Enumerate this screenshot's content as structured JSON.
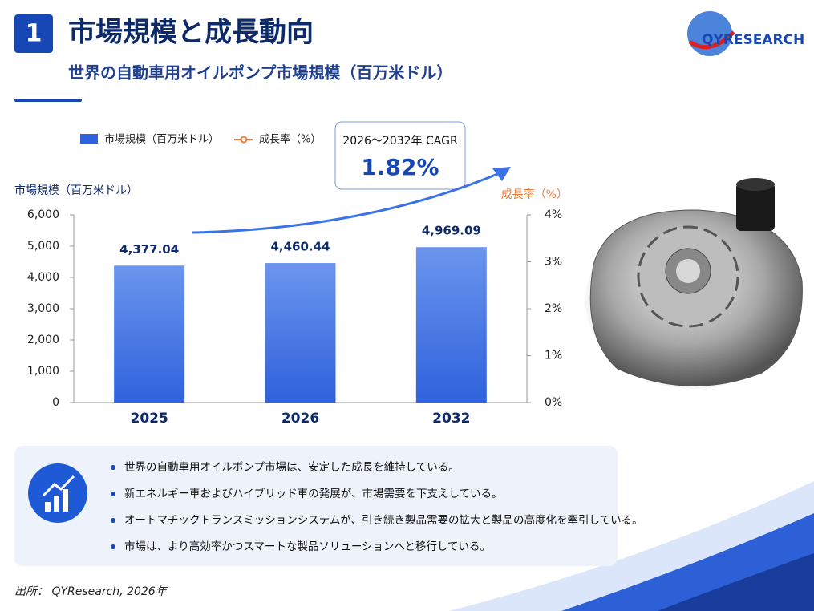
{
  "header": {
    "number": "1",
    "title": "市場規模と成長動向",
    "subtitle": "世界の自動車用オイルポンプ市場規模（百万米ドル）",
    "logo": "QYRESEARCH"
  },
  "chart_data": {
    "type": "bar",
    "categories": [
      "2025",
      "2026",
      "2032"
    ],
    "series": [
      {
        "name": "市場規模（百万米ドル）",
        "color": "#2f62dc",
        "values": [
          4377.04,
          4460.44,
          4969.09
        ],
        "value_labels": [
          "4,377.04",
          "4,460.44",
          "4,969.09"
        ]
      },
      {
        "name": "成長率（%）",
        "color": "#f07a3a",
        "axis": "y2",
        "values": [
          null,
          null,
          null
        ]
      }
    ],
    "y_label": "市場規模（百万米ドル）",
    "y2_label": "成長率（%）",
    "ylim": [
      0,
      6000
    ],
    "yticks": [
      0,
      {
        "value": 1000,
        "label": "1,000"
      },
      {
        "value": 2000,
        "label": "2,000"
      },
      {
        "value": 3000,
        "label": "3,000"
      },
      {
        "value": 4000,
        "label": "4,000"
      },
      {
        "value": 5000,
        "label": "5,000"
      },
      {
        "value": 6000,
        "label": "6,000"
      }
    ],
    "y2lim": [
      0,
      4
    ],
    "y2ticks": [
      {
        "value": 0,
        "label": "0%"
      },
      {
        "value": 1,
        "label": "1%"
      },
      {
        "value": 2,
        "label": "2%"
      },
      {
        "value": 3,
        "label": "3%"
      },
      {
        "value": 4,
        "label": "4%"
      }
    ],
    "annotation": {
      "label": "2026～2032年 CAGR",
      "value": "1.82%"
    }
  },
  "bullets": [
    "世界の自動車用オイルポンプ市場は、安定した成長を維持している。",
    "新エネルギー車およびハイブリッド車の発展が、市場需要を下支えしている。",
    "オートマチックトランスミッションシステムが、引き続き製品需要の拡大と製品の高度化を牽引している。",
    "市場は、より高効率かつスマートな製品ソリューションへと移行している。"
  ],
  "source": "出所： QYResearch, 2026年"
}
